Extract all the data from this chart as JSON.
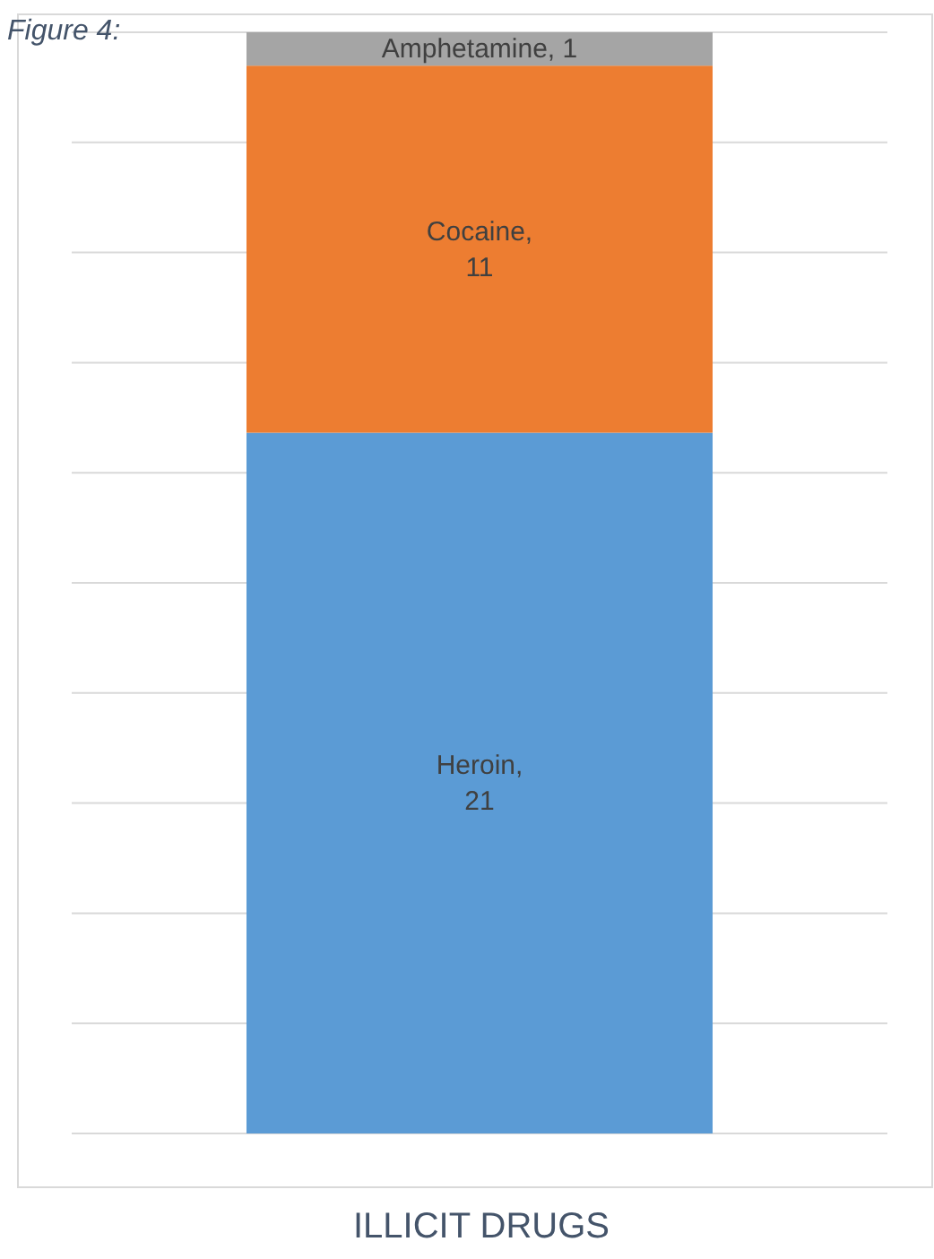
{
  "chart_data": {
    "type": "bar",
    "stacked": true,
    "title": "ILLICIT DRUGS",
    "annotations": [
      "Figure 4:"
    ],
    "categories": [
      null
    ],
    "series": [
      {
        "color": "#5b9bd5",
        "values": [
          21
        ],
        "value_labels": [
          "Heroin, 21"
        ]
      },
      {
        "color": "#ed7d31",
        "values": [
          11
        ],
        "value_labels": [
          "Cocaine, 11"
        ]
      },
      {
        "color": "#a5a5a5",
        "values": [
          1
        ],
        "value_labels": [
          "Amphetamine, 1"
        ]
      }
    ],
    "ylim": [
      0,
      33
    ],
    "yticks": [
      {
        "value": 0,
        "label": null
      },
      {
        "value": 3.3,
        "label": null
      },
      {
        "value": 6.6,
        "label": null
      },
      {
        "value": 9.9,
        "label": null
      },
      {
        "value": 13.2,
        "label": null
      },
      {
        "value": 16.5,
        "label": null
      },
      {
        "value": 19.8,
        "label": null
      },
      {
        "value": 23.1,
        "label": null
      },
      {
        "value": 26.4,
        "label": null
      },
      {
        "value": 29.7,
        "label": null
      },
      {
        "value": 33,
        "label": null
      }
    ],
    "grid": "y"
  }
}
